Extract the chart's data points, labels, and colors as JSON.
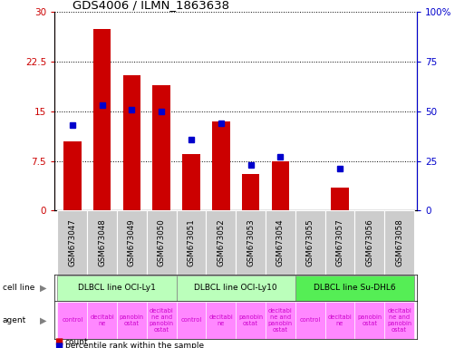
{
  "title": "GDS4006 / ILMN_1863638",
  "samples": [
    "GSM673047",
    "GSM673048",
    "GSM673049",
    "GSM673050",
    "GSM673051",
    "GSM673052",
    "GSM673053",
    "GSM673054",
    "GSM673055",
    "GSM673057",
    "GSM673056",
    "GSM673058"
  ],
  "counts": [
    10.5,
    27.5,
    20.5,
    19.0,
    8.5,
    13.5,
    5.5,
    7.5,
    0,
    3.5,
    0,
    0
  ],
  "percentiles": [
    43,
    53,
    51,
    50,
    36,
    44,
    23,
    27,
    0,
    21,
    0,
    0
  ],
  "ylim_left": [
    0,
    30
  ],
  "ylim_right": [
    0,
    100
  ],
  "yticks_left": [
    0,
    7.5,
    15,
    22.5,
    30
  ],
  "yticks_right": [
    0,
    25,
    50,
    75,
    100
  ],
  "ytick_labels_left": [
    "0",
    "7.5",
    "15",
    "22.5",
    "30"
  ],
  "ytick_labels_right": [
    "0",
    "25",
    "50",
    "75",
    "100%"
  ],
  "bar_color": "#cc0000",
  "dot_color": "#0000cc",
  "groups": [
    {
      "label": "DLBCL line OCI-Ly1",
      "start": 0,
      "end": 3,
      "color": "#bbffbb"
    },
    {
      "label": "DLBCL line OCI-Ly10",
      "start": 4,
      "end": 7,
      "color": "#bbffbb"
    },
    {
      "label": "DLBCL line Su-DHL6",
      "start": 8,
      "end": 11,
      "color": "#55ee55"
    }
  ],
  "agent_labels": [
    "control",
    "decitabi\nne",
    "panobin\nostat",
    "decitabi\nne and\npanobin\nostat",
    "control",
    "decitabi\nne",
    "panobin\nostat",
    "decitabi\nne and\npanobin\nostat",
    "control",
    "decitabi\nne",
    "panobin\nostat",
    "decitabi\nne and\npanobin\nostat"
  ],
  "agent_color": "#ff88ff",
  "tick_bg_color": "#cccccc",
  "cell_line_label_color": "#000000",
  "legend_count_color": "#cc0000",
  "legend_pct_color": "#0000cc"
}
